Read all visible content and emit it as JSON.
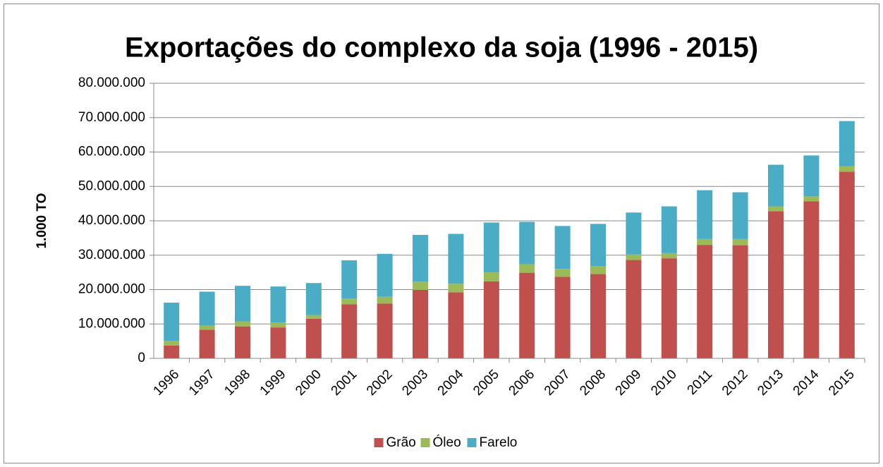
{
  "chart_data": {
    "type": "stacked_bar",
    "title": "Exportações do complexo da soja (1996 - 2015)",
    "y_label": "1.000 TO",
    "categories": [
      "1996",
      "1997",
      "1998",
      "1999",
      "2000",
      "2001",
      "2002",
      "2003",
      "2004",
      "2005",
      "2006",
      "2007",
      "2008",
      "2009",
      "2010",
      "2011",
      "2012",
      "2013",
      "2014",
      "2015"
    ],
    "series": [
      {
        "name": "Grão",
        "color": "#c0504d",
        "values": [
          3700000,
          8300000,
          9300000,
          9000000,
          11500000,
          15700000,
          15900000,
          19900000,
          19200000,
          22400000,
          24900000,
          23700000,
          24500000,
          28600000,
          29100000,
          33000000,
          32900000,
          42800000,
          45700000,
          54300000
        ]
      },
      {
        "name": "Óleo",
        "color": "#9bbb59",
        "values": [
          1400000,
          1200000,
          1400000,
          1400000,
          1100000,
          1700000,
          2000000,
          2400000,
          2500000,
          2600000,
          2500000,
          2300000,
          2300000,
          1600000,
          1500000,
          1700000,
          1800000,
          1400000,
          1400000,
          1600000
        ]
      },
      {
        "name": "Farelo",
        "color": "#4bacc6",
        "values": [
          11100000,
          9900000,
          10400000,
          10500000,
          9300000,
          11100000,
          12500000,
          13600000,
          14500000,
          14500000,
          12300000,
          12500000,
          12300000,
          12200000,
          13600000,
          14200000,
          13600000,
          12100000,
          11900000,
          13100000
        ]
      }
    ],
    "ylim": [
      0,
      80000000
    ],
    "yticks": [
      0,
      {
        "value": 10000000,
        "label": "10.000.000"
      },
      {
        "value": 20000000,
        "label": "20.000.000"
      },
      {
        "value": 30000000,
        "label": "30.000.000"
      },
      {
        "value": 40000000,
        "label": "40.000.000"
      },
      {
        "value": 50000000,
        "label": "50.000.000"
      },
      {
        "value": 60000000,
        "label": "60.000.000"
      },
      {
        "value": 70000000,
        "label": "70.000.000"
      },
      {
        "value": 80000000,
        "label": "80.000.000"
      }
    ],
    "grid": true,
    "legend": "bottom"
  }
}
